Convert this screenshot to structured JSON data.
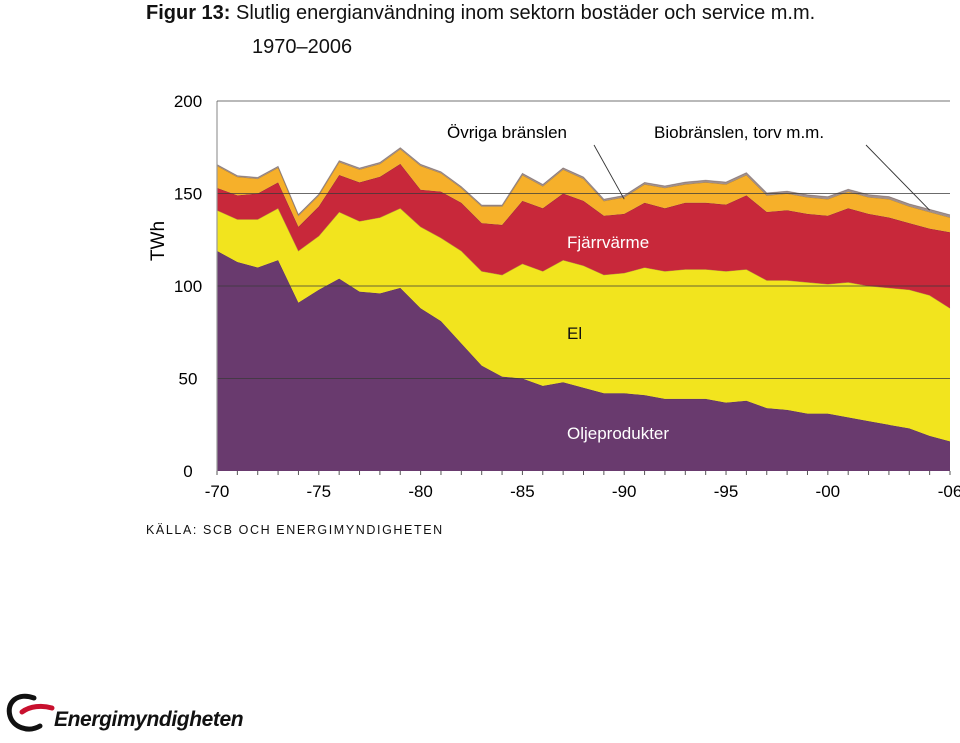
{
  "figure": {
    "label": "Figur 13:",
    "title": "Slutlig energianvändning inom sektorn bostäder och service m.m.",
    "subtitle": "1970–2006"
  },
  "source": "KÄLLA: SCB OCH ENERGIMYNDIGHETEN",
  "logo": {
    "name": "Energimyndigheten",
    "accent_color": "#c8102e"
  },
  "chart_data": {
    "type": "area",
    "stacked": true,
    "x": [
      1970,
      1971,
      1972,
      1973,
      1974,
      1975,
      1976,
      1977,
      1978,
      1979,
      1980,
      1981,
      1982,
      1983,
      1984,
      1985,
      1986,
      1987,
      1988,
      1989,
      1990,
      1991,
      1992,
      1993,
      1994,
      1995,
      1996,
      1997,
      1998,
      1999,
      2000,
      2001,
      2002,
      2003,
      2004,
      2005,
      2006
    ],
    "xticks": [
      1970,
      1975,
      1980,
      1985,
      1990,
      1995,
      2000,
      2006
    ],
    "xtick_labels": [
      "-70",
      "-75",
      "-80",
      "-85",
      "-90",
      "-95",
      "-00",
      "-06"
    ],
    "ylabel": "TWh",
    "ylim": [
      0,
      200
    ],
    "yticks": [
      0,
      50,
      100,
      150,
      200
    ],
    "gridlines": [
      50,
      100,
      150
    ],
    "series": [
      {
        "name": "Oljeprodukter",
        "color": "#693a6e",
        "values": [
          119,
          113,
          110,
          114,
          91,
          98,
          104,
          97,
          96,
          99,
          88,
          81,
          69,
          57,
          51,
          50,
          46,
          48,
          45,
          42,
          42,
          41,
          39,
          39,
          39,
          37,
          38,
          34,
          33,
          31,
          31,
          29,
          27,
          25,
          23,
          19,
          16
        ]
      },
      {
        "name": "El",
        "color": "#f2e41e",
        "values": [
          22,
          23,
          26,
          28,
          28,
          29,
          36,
          38,
          41,
          43,
          44,
          45,
          50,
          51,
          55,
          62,
          62,
          66,
          66,
          64,
          65,
          69,
          69,
          70,
          70,
          71,
          71,
          69,
          70,
          71,
          70,
          73,
          73,
          74,
          75,
          76,
          72
        ]
      },
      {
        "name": "Fjärrvärme",
        "color": "#c8283a",
        "values": [
          12,
          13,
          14,
          14,
          13,
          16,
          20,
          21,
          22,
          24,
          20,
          25,
          26,
          26,
          27,
          34,
          34,
          36,
          35,
          32,
          32,
          35,
          34,
          36,
          36,
          36,
          40,
          37,
          38,
          37,
          37,
          40,
          39,
          38,
          36,
          36,
          41
        ]
      },
      {
        "name": "Övriga bränslen",
        "color": "#f6b02a",
        "values": [
          12,
          10,
          8,
          8,
          6,
          6,
          7,
          7,
          7,
          8,
          13,
          10,
          8,
          9,
          10,
          14,
          12,
          13,
          12,
          8,
          9,
          10,
          11,
          10,
          11,
          11,
          11,
          9,
          9,
          9,
          9,
          9,
          9,
          10,
          9,
          9,
          8
        ]
      },
      {
        "name": "Biobränslen, torv m.m.",
        "color": "#a08f8c",
        "values": [
          0.7,
          0.7,
          0.7,
          0.7,
          0.7,
          0.7,
          0.8,
          0.8,
          0.8,
          0.8,
          0.8,
          0.8,
          0.8,
          0.8,
          0.8,
          0.9,
          0.9,
          0.9,
          0.9,
          1,
          1,
          1,
          1.1,
          1.2,
          1.2,
          1.2,
          1.3,
          1.3,
          1.3,
          1.3,
          1.3,
          1.3,
          1.4,
          1.4,
          1.4,
          1.5,
          1.5
        ]
      }
    ],
    "annotations": [
      {
        "text": "Övriga bränslen",
        "points_to_year": 1990
      },
      {
        "text": "Biobränslen, torv m.m.",
        "points_to_year": 2005
      },
      {
        "text": "Fjärrvärme"
      },
      {
        "text": "El"
      },
      {
        "text": "Oljeprodukter"
      }
    ],
    "grid": true,
    "legend": "none (series labelled inline)"
  }
}
